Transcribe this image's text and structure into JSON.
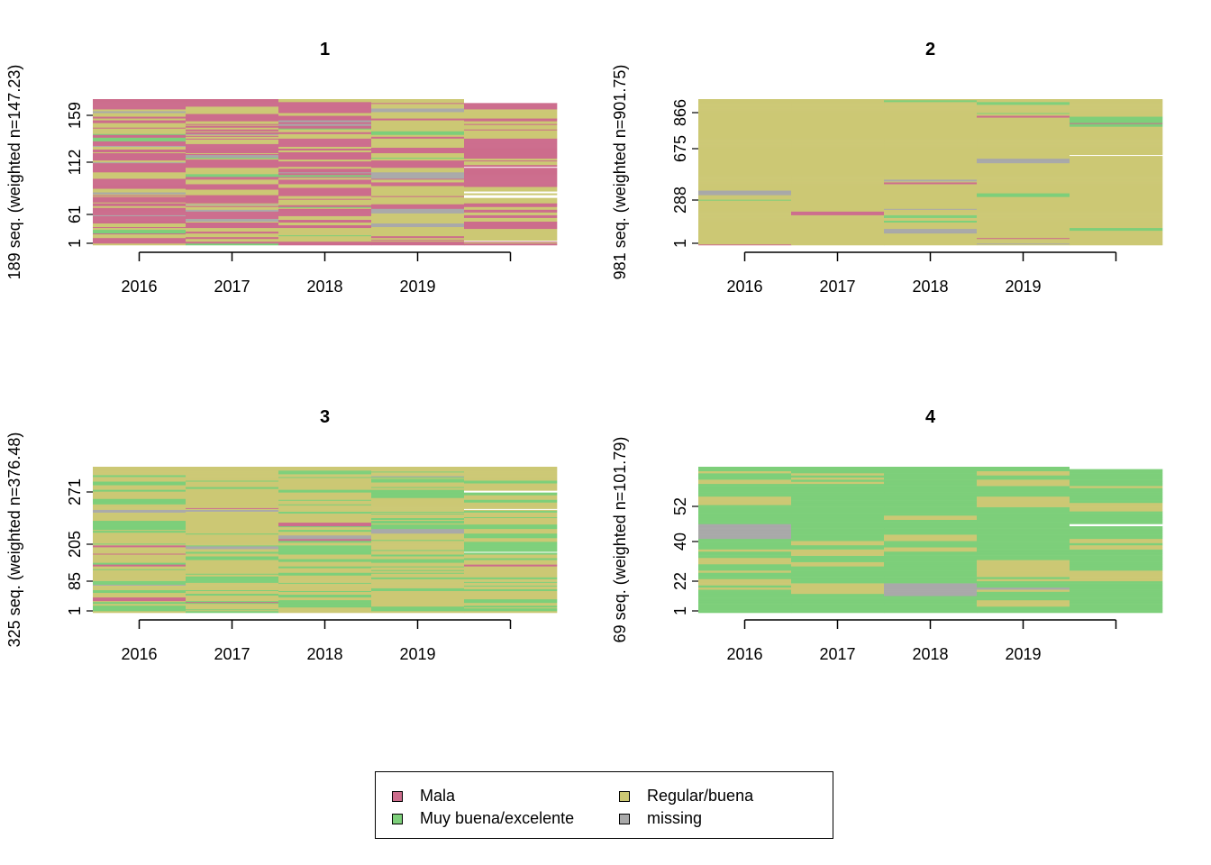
{
  "chart_data": [
    {
      "type": "sequence-index",
      "title": "1",
      "ylabel": "189 seq. (weighted n=147.23)",
      "x": [
        "2016",
        "2017",
        "2018",
        "2019"
      ],
      "n_columns": 5,
      "ytick_labels": [
        "1",
        "61",
        "112",
        "159"
      ],
      "n_rows": 189,
      "dominant_state": [
        "Mala",
        "Regular/buena",
        "Mala",
        "Regular/buena",
        "Regular/buena"
      ],
      "mix_share": {
        "Mala": 0.45,
        "Regular/buena": 0.45,
        "Muy buena/excelente": 0.05,
        "missing": 0.05
      }
    },
    {
      "type": "sequence-index",
      "title": "2",
      "ylabel": "981 seq. (weighted n=901.75)",
      "x": [
        "2016",
        "2017",
        "2018",
        "2019"
      ],
      "n_columns": 5,
      "ytick_labels": [
        "1",
        "288",
        "675",
        "866"
      ],
      "n_rows": 981,
      "dominant_state": [
        "Regular/buena",
        "Regular/buena",
        "Regular/buena",
        "Regular/buena",
        "Regular/buena"
      ],
      "mix_share": {
        "Mala": 0.03,
        "Regular/buena": 0.9,
        "Muy buena/excelente": 0.04,
        "missing": 0.03
      }
    },
    {
      "type": "sequence-index",
      "title": "3",
      "ylabel": "325 seq. (weighted n=376.48)",
      "x": [
        "2016",
        "2017",
        "2018",
        "2019"
      ],
      "n_columns": 5,
      "ytick_labels": [
        "1",
        "85",
        "205",
        "271"
      ],
      "n_rows": 325,
      "dominant_state": [
        "Regular/buena",
        "Regular/buena",
        "Regular/buena",
        "Regular/buena",
        "Regular/buena"
      ],
      "mix_share": {
        "Mala": 0.02,
        "Regular/buena": 0.6,
        "Muy buena/excelente": 0.35,
        "missing": 0.03
      }
    },
    {
      "type": "sequence-index",
      "title": "4",
      "ylabel": "69 seq. (weighted n=101.79)",
      "x": [
        "2016",
        "2017",
        "2018",
        "2019"
      ],
      "n_columns": 5,
      "ytick_labels": [
        "1",
        "22",
        "40",
        "52"
      ],
      "n_rows": 69,
      "dominant_state": [
        "Muy buena/excelente",
        "Muy buena/excelente",
        "Muy buena/excelente",
        "Muy buena/excelente",
        "Muy buena/excelente"
      ],
      "mix_share": {
        "Mala": 0.0,
        "Regular/buena": 0.3,
        "Muy buena/excelente": 0.68,
        "missing": 0.02
      }
    }
  ],
  "legend": {
    "items": [
      {
        "label": "Mala",
        "color": "#CC6C8C"
      },
      {
        "label": "Regular/buena",
        "color": "#CCC874"
      },
      {
        "label": "Muy buena/excelente",
        "color": "#7DCF7A"
      },
      {
        "label": "missing",
        "color": "#A9A9A9"
      }
    ]
  },
  "colors": {
    "Mala": "#CC6C8C",
    "Regular/buena": "#CCC874",
    "Muy buena/excelente": "#7DCF7A",
    "missing": "#A9A9A9"
  }
}
